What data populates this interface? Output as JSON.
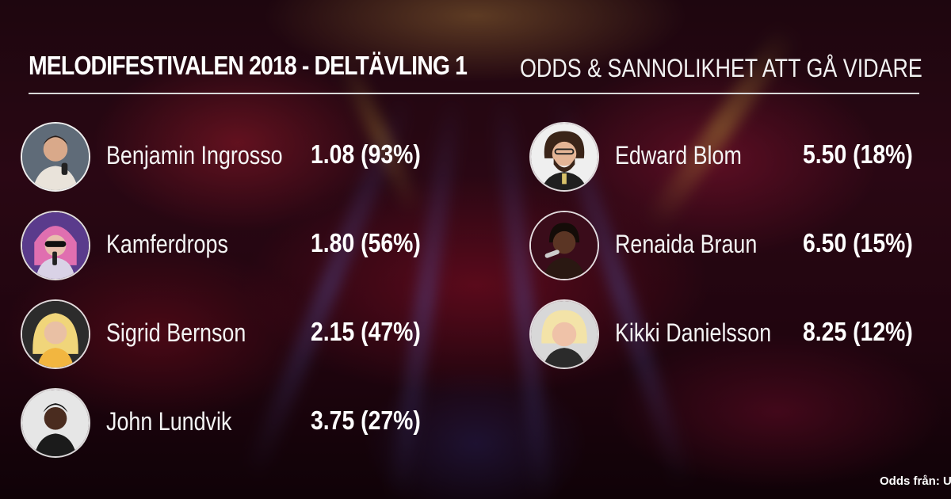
{
  "header": {
    "title": "MELODIFESTIVALEN 2018 - DELTÄVLING 1",
    "subtitle": "ODDS & SANNOLIKHET ATT GÅ VIDARE"
  },
  "left_column": [
    {
      "name": "Benjamin Ingrosso",
      "odds": "1.08 (93%)",
      "avatar_icon": "portrait-icon"
    },
    {
      "name": "Kamferdrops",
      "odds": "1.80 (56%)",
      "avatar_icon": "portrait-icon"
    },
    {
      "name": "Sigrid Bernson",
      "odds": "2.15 (47%)",
      "avatar_icon": "portrait-icon"
    },
    {
      "name": "John Lundvik",
      "odds": "3.75 (27%)",
      "avatar_icon": "portrait-icon"
    }
  ],
  "right_column": [
    {
      "name": "Edward Blom",
      "odds": "5.50 (18%)",
      "avatar_icon": "portrait-icon"
    },
    {
      "name": "Renaida Braun",
      "odds": "6.50 (15%)",
      "avatar_icon": "portrait-icon"
    },
    {
      "name": "Kikki Danielsson",
      "odds": "8.25 (12%)",
      "avatar_icon": "portrait-icon"
    }
  ],
  "footer": {
    "source": "Odds från: U"
  },
  "colors": {
    "text": "#ffffff",
    "rule": "#d8d8d8",
    "background_red": "#3c0c1c"
  }
}
